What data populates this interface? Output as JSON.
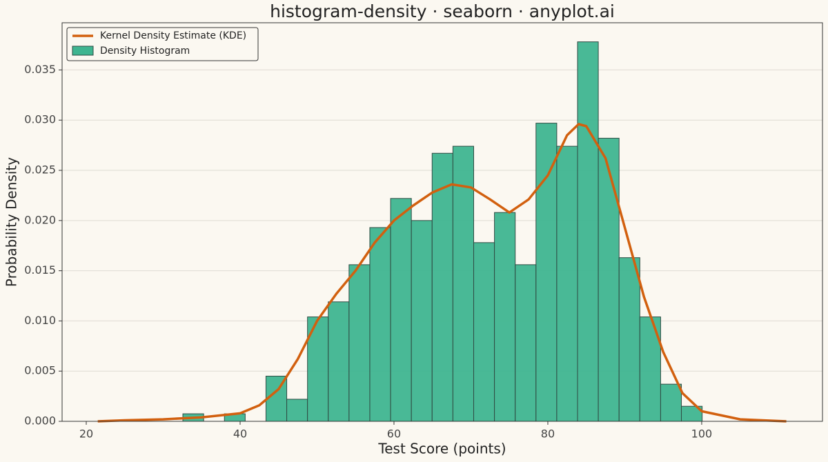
{
  "chart_data": {
    "type": "histogram",
    "title": "histogram-density · seaborn · anyplot.ai",
    "x_label": "Test Score (points)",
    "y_label": "Probability Density",
    "xlim": [
      16.86,
      115.7
    ],
    "ylim": [
      0,
      0.0397
    ],
    "xticks": [
      20,
      40,
      60,
      80,
      100
    ],
    "yticks": [
      {
        "value": 0,
        "label": "0.000"
      },
      {
        "value": 0.005,
        "label": "0.005"
      },
      {
        "value": 0.01,
        "label": "0.010"
      },
      {
        "value": 0.015,
        "label": "0.015"
      },
      {
        "value": 0.02,
        "label": "0.020"
      },
      {
        "value": 0.025,
        "label": "0.025"
      },
      {
        "value": 0.03,
        "label": "0.030"
      },
      {
        "value": 0.035,
        "label": "0.035"
      }
    ],
    "grid": true,
    "legend": "upper left",
    "histogram": {
      "name": "Density Histogram",
      "color": "#3fb590",
      "edgecolor": "#2f4a42",
      "bins": [
        32.56,
        35.26,
        37.96,
        40.66,
        43.36,
        46.06,
        48.76,
        51.46,
        54.16,
        56.86,
        59.56,
        62.26,
        64.96,
        67.66,
        70.36,
        73.06,
        75.76,
        78.46,
        81.16,
        83.86,
        86.56,
        89.26,
        91.96,
        94.66,
        97.36,
        100.06
      ],
      "values": [
        0.00075,
        0,
        0.00075,
        0,
        0.0045,
        0.0022,
        0.0104,
        0.0119,
        0.0156,
        0.0193,
        0.0222,
        0.02,
        0.0267,
        0.0274,
        0.0178,
        0.0208,
        0.0156,
        0.0297,
        0.0274,
        0.0378,
        0.0282,
        0.0163,
        0.0104,
        0.0037,
        0.0015
      ]
    },
    "kde": {
      "name": "Kernel Density Estimate (KDE)",
      "color": "#d2600f",
      "x": [
        21.5,
        25,
        30,
        35,
        40,
        42.5,
        45,
        47.5,
        50,
        52.5,
        55,
        57.5,
        60,
        62.5,
        65,
        67.5,
        70,
        72.5,
        75,
        77.5,
        80,
        82.5,
        84,
        85,
        87.5,
        90,
        92.5,
        95,
        97.5,
        100,
        105,
        111
      ],
      "values": [
        0,
        0.0001,
        0.0002,
        0.0004,
        0.0008,
        0.0016,
        0.0032,
        0.0062,
        0.01,
        0.0127,
        0.015,
        0.0178,
        0.02,
        0.0215,
        0.0228,
        0.0236,
        0.0233,
        0.0221,
        0.0208,
        0.0221,
        0.0245,
        0.0285,
        0.0296,
        0.0294,
        0.0262,
        0.0193,
        0.0124,
        0.0069,
        0.0028,
        0.001,
        0.0002,
        0
      ]
    }
  }
}
